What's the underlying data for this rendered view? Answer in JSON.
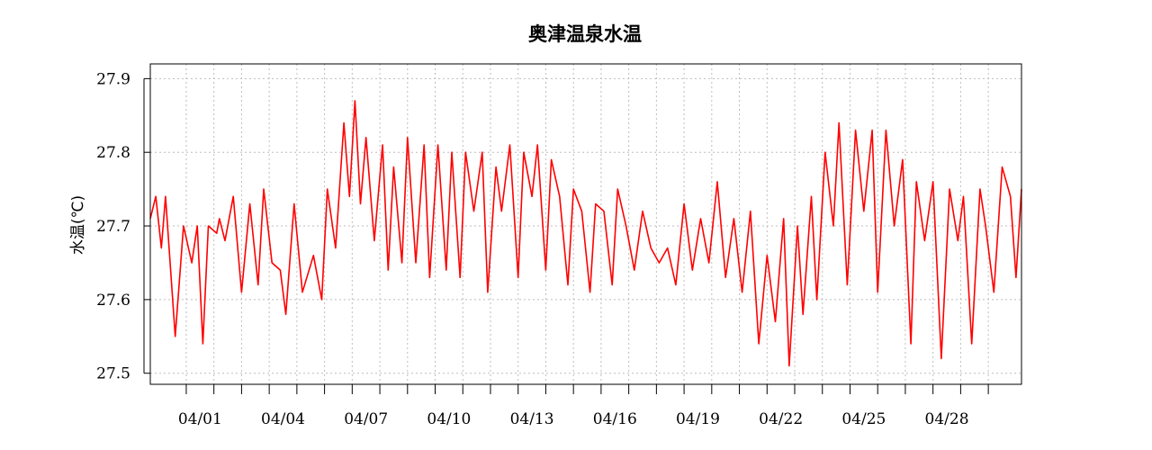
{
  "chart_data": {
    "type": "line",
    "title": "奥津温泉水温",
    "xlabel": "",
    "ylabel": "水温(℃)",
    "ylim": [
      27.485,
      27.92
    ],
    "xlim": [
      -0.3,
      31.2
    ],
    "y_ticks": [
      "27.5",
      "27.6",
      "27.7",
      "27.8",
      "27.9"
    ],
    "x_tick_days": [
      1,
      2,
      3,
      4,
      5,
      6,
      7,
      8,
      9,
      10,
      11,
      12,
      13,
      14,
      15,
      16,
      17,
      18,
      19,
      20,
      21,
      22,
      23,
      24,
      25,
      26,
      27,
      28,
      29,
      30
    ],
    "x_labels": [
      {
        "day": 1.5,
        "label": "04/01"
      },
      {
        "day": 4.5,
        "label": "04/04"
      },
      {
        "day": 7.5,
        "label": "04/07"
      },
      {
        "day": 10.5,
        "label": "04/10"
      },
      {
        "day": 13.5,
        "label": "04/13"
      },
      {
        "day": 16.5,
        "label": "04/16"
      },
      {
        "day": 19.5,
        "label": "04/19"
      },
      {
        "day": 22.5,
        "label": "04/22"
      },
      {
        "day": 25.5,
        "label": "04/25"
      },
      {
        "day": 28.5,
        "label": "04/28"
      }
    ],
    "grid": true,
    "series_color": "#ff0000",
    "series": [
      {
        "x": [
          -0.3,
          -0.1,
          0.1,
          0.25,
          0.6,
          0.9,
          1.2,
          1.4,
          1.6,
          1.8,
          2.1,
          2.2,
          2.4,
          2.7,
          3.0,
          3.3,
          3.6,
          3.8,
          4.1,
          4.4,
          4.6,
          4.9,
          5.2,
          5.6,
          5.9,
          6.1,
          6.4,
          6.7,
          6.9,
          7.1,
          7.3,
          7.5,
          7.8,
          8.1,
          8.3,
          8.5,
          8.8,
          9.0,
          9.3,
          9.6,
          9.8,
          10.1,
          10.4,
          10.6,
          10.9,
          11.1,
          11.4,
          11.7,
          11.9,
          12.2,
          12.4,
          12.7,
          13.0,
          13.2,
          13.5,
          13.7,
          14.0,
          14.2,
          14.5,
          14.8,
          15.0,
          15.3,
          15.6,
          15.8,
          16.1,
          16.4,
          16.6,
          16.9,
          17.2,
          17.5,
          17.8,
          18.1,
          18.4,
          18.7,
          19.0,
          19.3,
          19.6,
          19.9,
          20.2,
          20.5,
          20.8,
          21.1,
          21.4,
          21.7,
          22.0,
          22.3,
          22.6,
          22.8,
          23.1,
          23.3,
          23.6,
          23.8,
          24.1,
          24.4,
          24.6,
          24.9,
          25.2,
          25.5,
          25.8,
          26.0,
          26.3,
          26.6,
          26.9,
          27.2,
          27.4,
          27.7,
          28.0,
          28.3,
          28.6,
          28.9,
          29.1,
          29.4,
          29.7,
          29.9,
          30.2,
          30.5,
          30.8,
          31.0,
          31.2
        ],
        "y": [
          27.71,
          27.74,
          27.67,
          27.74,
          27.55,
          27.7,
          27.65,
          27.7,
          27.54,
          27.7,
          27.69,
          27.71,
          27.68,
          27.74,
          27.61,
          27.73,
          27.62,
          27.75,
          27.65,
          27.64,
          27.58,
          27.73,
          27.61,
          27.66,
          27.6,
          27.75,
          27.67,
          27.84,
          27.74,
          27.87,
          27.73,
          27.82,
          27.68,
          27.81,
          27.64,
          27.78,
          27.65,
          27.82,
          27.65,
          27.81,
          27.63,
          27.81,
          27.64,
          27.8,
          27.63,
          27.8,
          27.72,
          27.8,
          27.61,
          27.78,
          27.72,
          27.81,
          27.63,
          27.8,
          27.74,
          27.81,
          27.64,
          27.79,
          27.74,
          27.62,
          27.75,
          27.72,
          27.61,
          27.73,
          27.72,
          27.62,
          27.75,
          27.7,
          27.64,
          27.72,
          27.67,
          27.65,
          27.67,
          27.62,
          27.73,
          27.64,
          27.71,
          27.65,
          27.76,
          27.63,
          27.71,
          27.61,
          27.72,
          27.54,
          27.66,
          27.57,
          27.71,
          27.51,
          27.7,
          27.58,
          27.74,
          27.6,
          27.8,
          27.7,
          27.84,
          27.62,
          27.83,
          27.72,
          27.83,
          27.61,
          27.83,
          27.7,
          27.79,
          27.54,
          27.76,
          27.68,
          27.76,
          27.52,
          27.75,
          27.68,
          27.74,
          27.54,
          27.75,
          27.7,
          27.61,
          27.78,
          27.74,
          27.63,
          27.75
        ]
      }
    ]
  }
}
